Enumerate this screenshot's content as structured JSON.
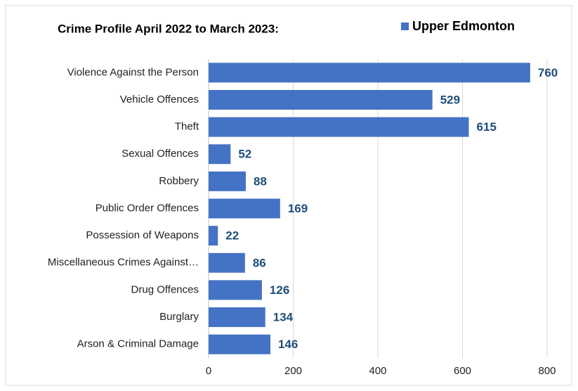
{
  "chart_data": {
    "type": "bar",
    "orientation": "horizontal",
    "title": "Crime Profile April 2022 to March 2023:",
    "categories": [
      "Violence Against the Person",
      "Vehicle Offences",
      "Theft",
      "Sexual Offences",
      "Robbery",
      "Public Order Offences",
      "Possession of Weapons",
      "Miscellaneous Crimes Against…",
      "Drug Offences",
      "Burglary",
      "Arson & Criminal Damage"
    ],
    "series": [
      {
        "name": "Upper Edmonton",
        "color": "#4472c4",
        "values": [
          760,
          529,
          615,
          52,
          88,
          169,
          22,
          86,
          126,
          134,
          146
        ]
      }
    ],
    "xlim": [
      0,
      800
    ],
    "xticks": [
      0,
      200,
      400,
      600,
      800
    ],
    "grid": true,
    "legend": "top-right"
  }
}
